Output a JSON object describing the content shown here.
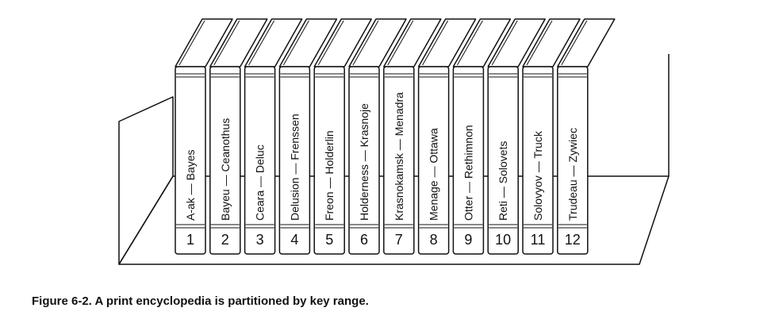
{
  "figure": {
    "caption": "Figure 6-2. A print encyclopedia is partitioned by key range.",
    "volumes": [
      {
        "number": "1",
        "range": "A-ak — Bayes"
      },
      {
        "number": "2",
        "range": "Bayeu — Ceanothus"
      },
      {
        "number": "3",
        "range": "Ceara — Deluc"
      },
      {
        "number": "4",
        "range": "Delusion — Frenssen"
      },
      {
        "number": "5",
        "range": "Freon — Holderlin"
      },
      {
        "number": "6",
        "range": "Holderness — Krasnoje"
      },
      {
        "number": "7",
        "range": "Krasnokamsk — Menadra"
      },
      {
        "number": "8",
        "range": "Menage — Ottawa"
      },
      {
        "number": "9",
        "range": "Otter — Rethimnon"
      },
      {
        "number": "10",
        "range": "Reti — Solovets"
      },
      {
        "number": "11",
        "range": "Solovyov — Truck"
      },
      {
        "number": "12",
        "range": "Trudeau — Zywiec"
      }
    ]
  }
}
